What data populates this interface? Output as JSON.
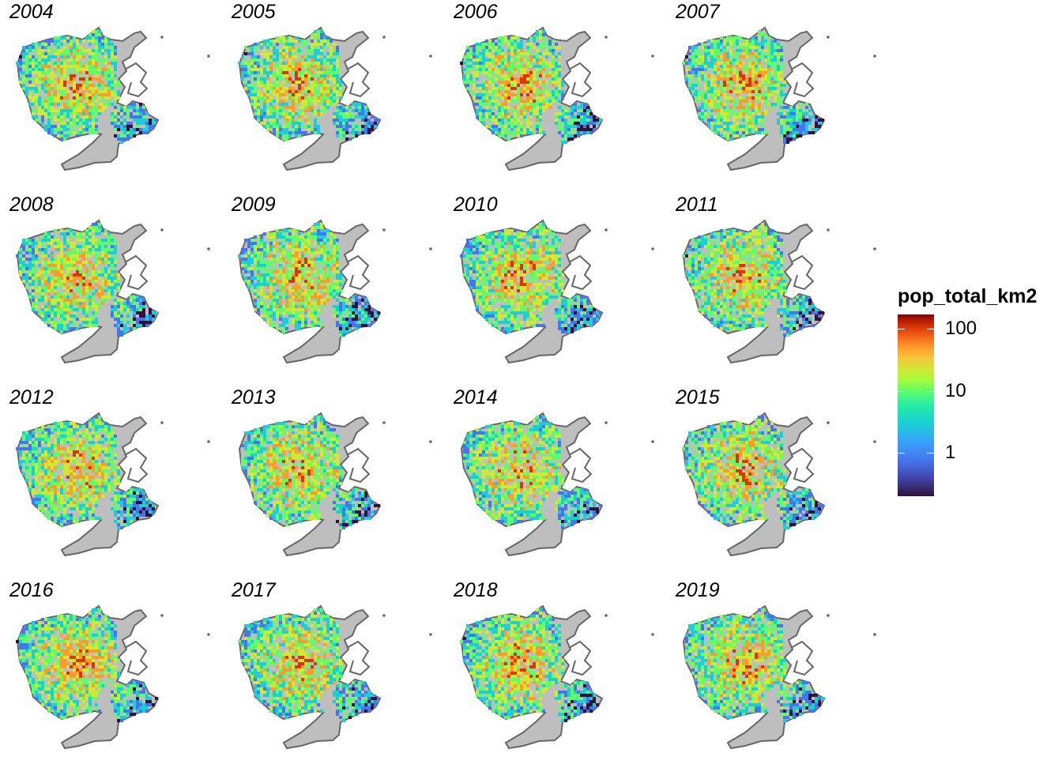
{
  "panels": [
    {
      "year": "2004"
    },
    {
      "year": "2005"
    },
    {
      "year": "2006"
    },
    {
      "year": "2007"
    },
    {
      "year": "2008"
    },
    {
      "year": "2009"
    },
    {
      "year": "2010"
    },
    {
      "year": "2011"
    },
    {
      "year": "2012"
    },
    {
      "year": "2013"
    },
    {
      "year": "2014"
    },
    {
      "year": "2015"
    },
    {
      "year": "2016"
    },
    {
      "year": "2017"
    },
    {
      "year": "2018"
    },
    {
      "year": "2019"
    }
  ],
  "legend": {
    "title": "pop_total_km2",
    "scale": "log10",
    "ticks": [
      {
        "label": "100",
        "value": 100
      },
      {
        "label": "10",
        "value": 10
      },
      {
        "label": "1",
        "value": 1
      }
    ],
    "range": [
      0.2,
      170
    ]
  },
  "colors": {
    "land_fill": "#bebebe",
    "outline": "#666666",
    "palette": [
      "#30123b",
      "#4675ed",
      "#1bcfd4",
      "#61fc6c",
      "#d1e834",
      "#fe9b2d",
      "#d93806",
      "#7a0403"
    ]
  }
}
